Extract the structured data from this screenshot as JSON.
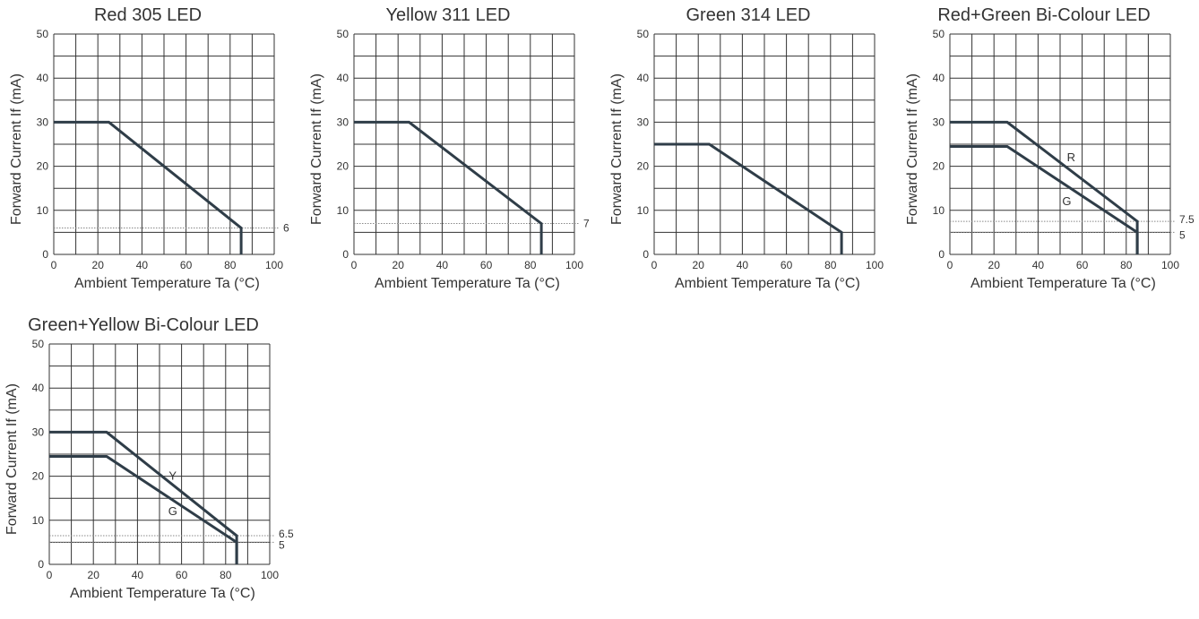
{
  "colors": {
    "curve": "#2f3d48",
    "grid": "#333333",
    "ref_line": "#888888"
  },
  "chart_data": [
    {
      "type": "line",
      "title": "Red 305 LED",
      "xlabel": "Ambient Temperature Ta (°C)",
      "ylabel": "Forward Current If (mA)",
      "xlim": [
        0,
        100
      ],
      "ylim": [
        0,
        50
      ],
      "x_ticks": [
        0,
        20,
        40,
        60,
        80,
        100
      ],
      "y_ticks": [
        0,
        10,
        20,
        30,
        40,
        50
      ],
      "grid": true,
      "series": [
        {
          "points": [
            [
              0,
              30
            ],
            [
              25,
              30
            ],
            [
              85,
              6
            ],
            [
              85,
              0
            ]
          ]
        }
      ],
      "reference_lines": [
        {
          "y": 6,
          "label": "6"
        }
      ],
      "annotations": []
    },
    {
      "type": "line",
      "title": "Yellow 311 LED",
      "xlabel": "Ambient Temperature Ta (°C)",
      "ylabel": "Forward Current If (mA)",
      "xlim": [
        0,
        100
      ],
      "ylim": [
        0,
        50
      ],
      "x_ticks": [
        0,
        20,
        40,
        60,
        80,
        100
      ],
      "y_ticks": [
        0,
        10,
        20,
        30,
        40,
        50
      ],
      "grid": true,
      "series": [
        {
          "points": [
            [
              0,
              30
            ],
            [
              25,
              30
            ],
            [
              85,
              7
            ],
            [
              85,
              0
            ]
          ]
        }
      ],
      "reference_lines": [
        {
          "y": 7,
          "label": "7"
        }
      ],
      "annotations": []
    },
    {
      "type": "line",
      "title": "Green 314 LED",
      "xlabel": "Ambient Temperature Ta (°C)",
      "ylabel": "Forward Current If (mA)",
      "xlim": [
        0,
        100
      ],
      "ylim": [
        0,
        50
      ],
      "x_ticks": [
        0,
        20,
        40,
        60,
        80,
        100
      ],
      "y_ticks": [
        0,
        10,
        20,
        30,
        40,
        50
      ],
      "grid": true,
      "series": [
        {
          "points": [
            [
              0,
              25
            ],
            [
              25,
              25
            ],
            [
              85,
              5
            ],
            [
              85,
              0
            ]
          ]
        }
      ],
      "reference_lines": [],
      "annotations": []
    },
    {
      "type": "line",
      "title": "Red+Green Bi-Colour LED",
      "xlabel": "Ambient Temperature Ta (°C)",
      "ylabel": "Forward Current If (mA)",
      "xlim": [
        0,
        100
      ],
      "ylim": [
        0,
        50
      ],
      "x_ticks": [
        0,
        20,
        40,
        60,
        80,
        100
      ],
      "y_ticks": [
        0,
        10,
        20,
        30,
        40,
        50
      ],
      "grid": true,
      "series": [
        {
          "name": "R",
          "points": [
            [
              0,
              30
            ],
            [
              26,
              30
            ],
            [
              85,
              7.5
            ],
            [
              85,
              0
            ]
          ]
        },
        {
          "name": "G",
          "points": [
            [
              0,
              24.5
            ],
            [
              26,
              24.5
            ],
            [
              85,
              5
            ],
            [
              85,
              0
            ]
          ]
        }
      ],
      "reference_lines": [
        {
          "y": 7.5,
          "label": "7.5"
        },
        {
          "y": 5,
          "label": "5"
        }
      ],
      "annotations": [
        {
          "text": "R",
          "x": 55,
          "y": 22
        },
        {
          "text": "G",
          "x": 53,
          "y": 12
        }
      ]
    },
    {
      "type": "line",
      "title": "Green+Yellow Bi-Colour LED",
      "xlabel": "Ambient Temperature Ta (°C)",
      "ylabel": "Forward Current If (mA)",
      "xlim": [
        0,
        100
      ],
      "ylim": [
        0,
        50
      ],
      "x_ticks": [
        0,
        20,
        40,
        60,
        80,
        100
      ],
      "y_ticks": [
        0,
        10,
        20,
        30,
        40,
        50
      ],
      "grid": true,
      "series": [
        {
          "name": "Y",
          "points": [
            [
              0,
              30
            ],
            [
              26,
              30
            ],
            [
              85,
              6.5
            ],
            [
              85,
              0
            ]
          ]
        },
        {
          "name": "G",
          "points": [
            [
              0,
              24.5
            ],
            [
              26,
              24.5
            ],
            [
              85,
              5
            ],
            [
              85,
              0
            ]
          ]
        }
      ],
      "reference_lines": [
        {
          "y": 6.5,
          "label": "6.5"
        },
        {
          "y": 5,
          "label": "5"
        }
      ],
      "annotations": [
        {
          "text": "Y",
          "x": 56,
          "y": 20
        },
        {
          "text": "G",
          "x": 56,
          "y": 12
        }
      ]
    }
  ]
}
